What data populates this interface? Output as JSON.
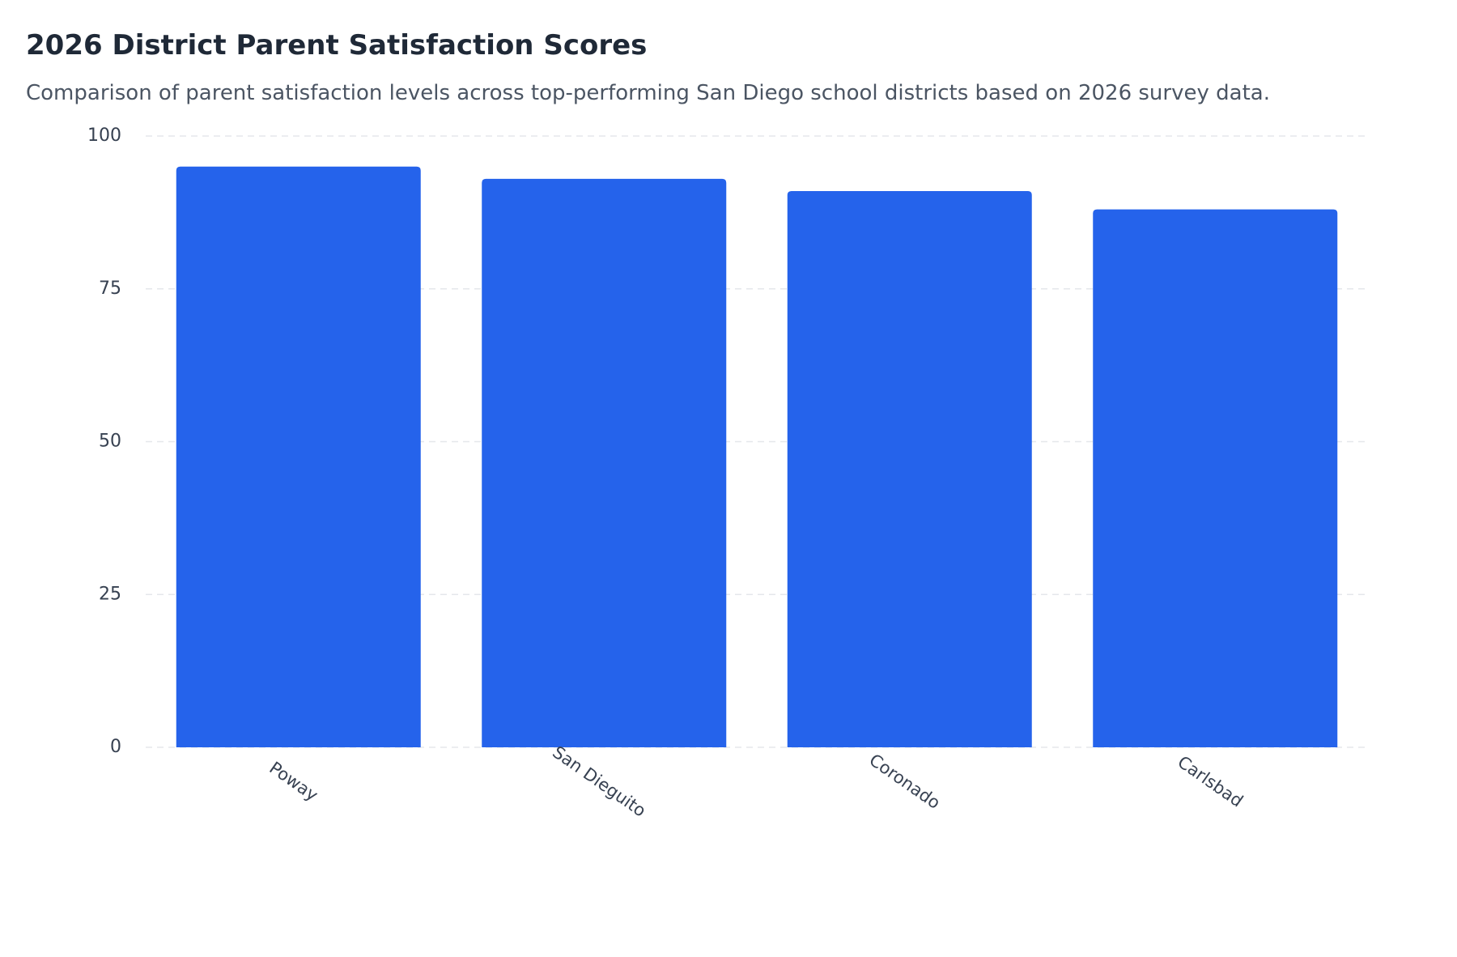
{
  "header": {
    "title": "2026 District Parent Satisfaction Scores",
    "subtitle": "Comparison of parent satisfaction levels across top-performing San Diego school districts based on 2026 survey data."
  },
  "chart_data": {
    "type": "bar",
    "title": "2026 District Parent Satisfaction Scores",
    "subtitle": "Comparison of parent satisfaction levels across top-performing San Diego school districts based on 2026 survey data.",
    "categories": [
      "Poway",
      "San Dieguito",
      "Coronado",
      "Carlsbad"
    ],
    "values": [
      95,
      93,
      91,
      88
    ],
    "xlabel": "",
    "ylabel": "",
    "ylim": [
      0,
      100
    ],
    "yticks": [
      0,
      25,
      50,
      75,
      100
    ],
    "grid": true,
    "legend": "none",
    "bar_color": "#2563eb",
    "grid_color": "#e5e7eb"
  }
}
